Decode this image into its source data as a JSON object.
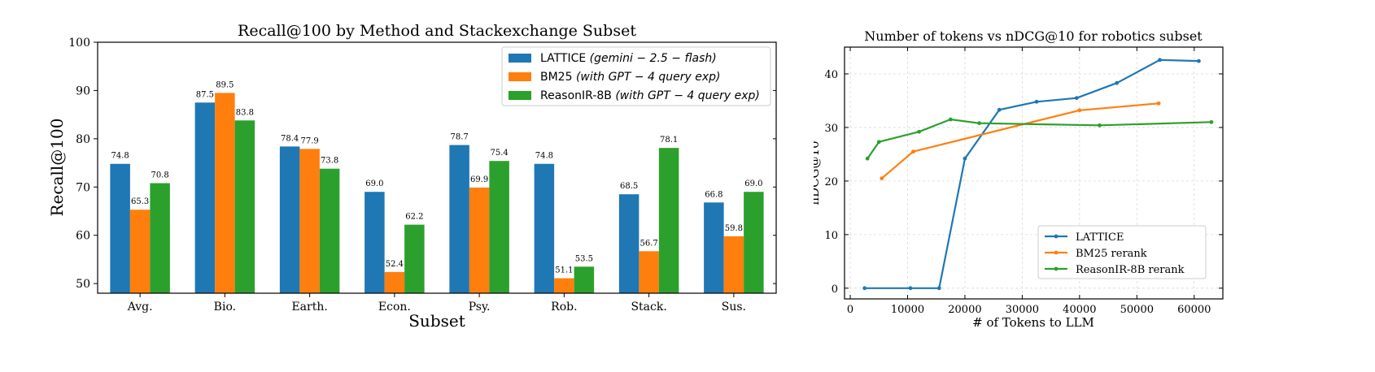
{
  "colors": {
    "blue": "#1f77b4",
    "orange": "#ff7f0e",
    "green": "#2ca02c",
    "grid": "#d9d9d9",
    "axis": "#000000"
  },
  "chart_data": [
    {
      "type": "bar",
      "title": "Recall@100 by Method and Stackexchange Subset",
      "xlabel": "Subset",
      "ylabel": "Recall@100",
      "ylim": [
        48,
        100
      ],
      "yticks": [
        50,
        60,
        70,
        80,
        90,
        100
      ],
      "categories": [
        "Avg.",
        "Bio.",
        "Earth.",
        "Econ.",
        "Psy.",
        "Rob.",
        "Stack.",
        "Sus."
      ],
      "legend_position": "top-right",
      "series": [
        {
          "name": "LATTICE",
          "qualifier": "(gemini − 2.5 − flash)",
          "color": "#1f77b4",
          "values": [
            74.8,
            87.5,
            78.4,
            69.0,
            78.7,
            74.8,
            68.5,
            66.8
          ],
          "labels": [
            "74.8",
            "87.5",
            "78.4",
            "69.0",
            "78.7",
            "74.8",
            "68.5",
            "66.8"
          ]
        },
        {
          "name": "BM25",
          "qualifier": "(with GPT − 4 query exp)",
          "color": "#ff7f0e",
          "values": [
            65.3,
            89.5,
            77.9,
            52.4,
            69.9,
            51.1,
            56.7,
            59.8
          ],
          "labels": [
            "65.3",
            "89.5",
            "77.9",
            "52.4",
            "69.9",
            "51.1",
            "56.7",
            "59.8"
          ]
        },
        {
          "name": "ReasonIR-8B",
          "qualifier": "(with GPT − 4 query exp)",
          "color": "#2ca02c",
          "values": [
            70.8,
            83.8,
            73.8,
            62.2,
            75.4,
            53.5,
            78.1,
            69.0
          ],
          "labels": [
            "70.8",
            "83.8",
            "73.8",
            "62.2",
            "75.4",
            "53.5",
            "78.1",
            "69.0"
          ]
        }
      ]
    },
    {
      "type": "line",
      "title": "Number of tokens vs nDCG@10 for robotics subset",
      "xlabel": "# of Tokens to LLM",
      "ylabel": "nDCG@10",
      "xlim": [
        -1000,
        65000
      ],
      "ylim": [
        -2,
        45
      ],
      "xticks": [
        0,
        10000,
        20000,
        30000,
        40000,
        50000,
        60000
      ],
      "xtick_labels": [
        "0",
        "10000",
        "20000",
        "30000",
        "40000",
        "50000",
        "60000"
      ],
      "yticks": [
        0,
        10,
        20,
        30,
        40
      ],
      "ytick_labels": [
        "0",
        "10",
        "20",
        "30",
        "40"
      ],
      "grid": true,
      "legend_position": "bottom-right",
      "series": [
        {
          "name": "LATTICE",
          "color": "#1f77b4",
          "x": [
            2500,
            10500,
            15500,
            20000,
            26000,
            32500,
            39500,
            46500,
            54000,
            60800
          ],
          "y": [
            0,
            0,
            0,
            24.2,
            33.3,
            34.8,
            35.5,
            38.3,
            42.6,
            42.4
          ]
        },
        {
          "name": "BM25 rerank",
          "color": "#ff7f0e",
          "x": [
            5500,
            11000,
            40000,
            53800
          ],
          "y": [
            20.5,
            25.5,
            33.2,
            34.5
          ]
        },
        {
          "name": "ReasonIR-8B rerank",
          "color": "#2ca02c",
          "x": [
            3000,
            5000,
            12000,
            17500,
            22500,
            43500,
            63000
          ],
          "y": [
            24.2,
            27.3,
            29.2,
            31.5,
            30.8,
            30.4,
            31.0
          ]
        }
      ]
    }
  ]
}
